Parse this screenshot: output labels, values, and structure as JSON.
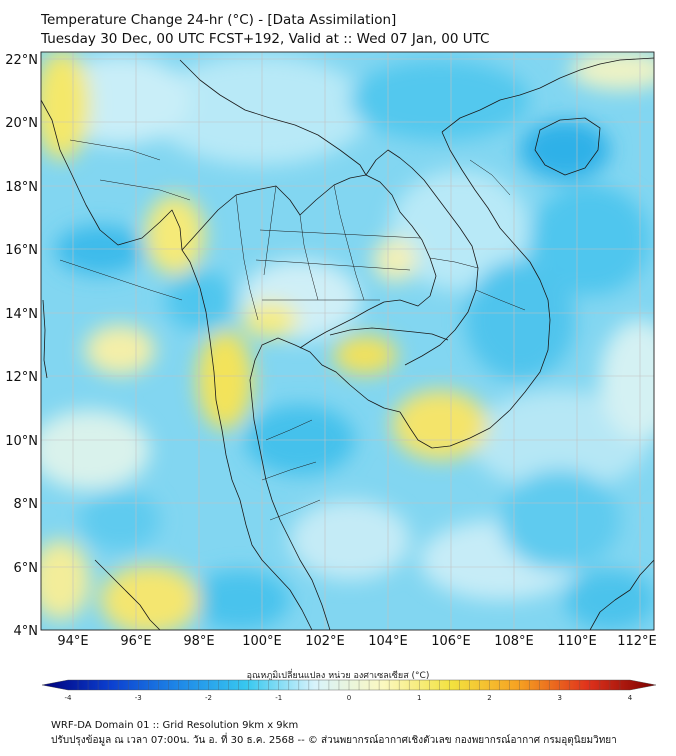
{
  "header": {
    "title_line1": "Temperature Change 24-hr (°C) - [Data Assimilation]",
    "title_line2": "Tuesday 30 Dec, 00 UTC FCST+192, Valid at :: Wed 07 Jan, 00 UTC"
  },
  "map": {
    "lat_labels": [
      "22°N",
      "20°N",
      "18°N",
      "16°N",
      "14°N",
      "12°N",
      "10°N",
      "8°N",
      "6°N",
      "4°N"
    ],
    "lon_labels": [
      "94°E",
      "96°E",
      "98°E",
      "100°E",
      "102°E",
      "104°E",
      "106°E",
      "108°E",
      "110°E",
      "112°E"
    ],
    "colors": {
      "sea_base": "#7fd3f0",
      "cool_light": "#aee6f7",
      "cool_mid": "#4fcdef",
      "cool_strong": "#1ea9e6",
      "neutral": "#f4f9ef",
      "warm_light": "#f7f2a3",
      "warm_mid": "#f2e45c",
      "borders": "#1a1a1a",
      "grid": "#bcbcbc"
    }
  },
  "colorbar": {
    "title": "อุณหภูมิเปลี่ยนแปลง หน่วย องศาเซลเซียส (°C)",
    "tick_labels": [
      "-4",
      "-3",
      "-2",
      "-1",
      "0",
      "1",
      "2",
      "3",
      "4"
    ],
    "stops": [
      "#00007a",
      "#0b3fd0",
      "#1e88e8",
      "#38c8f0",
      "#d8f3fb",
      "#fbf8c0",
      "#f3e23f",
      "#f6a021",
      "#e0321c",
      "#7a0000"
    ]
  },
  "footer": {
    "line1": "WRF-DA Domain 01 :: Grid Resolution 9km x 9km",
    "line2": "ปรับปรุงข้อมูล ณ เวลา 07:00น. วัน อ. ที่ 30 ธ.ค. 2568 -- © ส่วนพยากรณ์อากาศเชิงตัวเลข กองพยากรณ์อากาศ กรมอุตุนิยมวิทยา"
  }
}
